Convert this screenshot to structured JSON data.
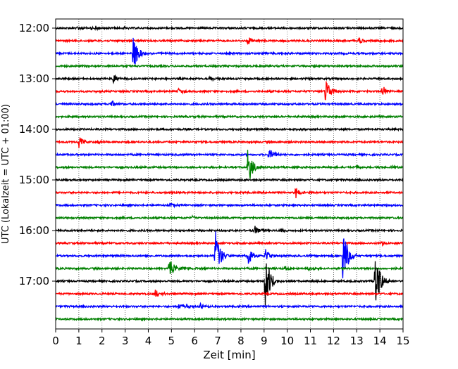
{
  "chart_data": {
    "type": "line",
    "title": "",
    "xlabel": "Zeit  [min]",
    "ylabel": "UTC (Lokalzeit = UTC + 01:00)",
    "xlim": [
      0,
      15
    ],
    "x_ticks": [
      "0",
      "1",
      "2",
      "3",
      "4",
      "5",
      "6",
      "7",
      "8",
      "9",
      "10",
      "11",
      "12",
      "13",
      "14",
      "15"
    ],
    "y_ticks": [
      "12:00",
      "13:00",
      "14:00",
      "15:00",
      "16:00",
      "17:00"
    ],
    "grid": "vertical-dotted",
    "trace_interval_min": 15,
    "start": "12:00",
    "trace_colors": [
      "#000000",
      "#ff0000",
      "#0000ff",
      "#008000"
    ],
    "traces": [
      {
        "start": "12:00",
        "color": "#000000",
        "events": [
          {
            "t": 0.95,
            "amp": 0.3
          },
          {
            "t": 1.5,
            "amp": 0.3
          },
          {
            "t": 1.7,
            "amp": 0.25
          },
          {
            "t": 2.95,
            "amp": 0.25
          }
        ]
      },
      {
        "start": "12:15",
        "color": "#ff0000",
        "events": [
          {
            "t": 8.3,
            "amp": 0.7
          },
          {
            "t": 13.1,
            "amp": 0.6
          }
        ]
      },
      {
        "start": "12:30",
        "color": "#0000ff",
        "events": [
          {
            "t": 3.35,
            "amp": 2.5
          },
          {
            "t": 8.95,
            "amp": 0.3
          }
        ]
      },
      {
        "start": "12:45",
        "color": "#008000",
        "events": []
      },
      {
        "start": "13:00",
        "color": "#000000",
        "events": [
          {
            "t": 2.5,
            "amp": 0.7
          },
          {
            "t": 6.65,
            "amp": 0.3
          }
        ]
      },
      {
        "start": "13:15",
        "color": "#ff0000",
        "events": [
          {
            "t": 5.3,
            "amp": 0.6
          },
          {
            "t": 11.65,
            "amp": 2.1
          },
          {
            "t": 14.1,
            "amp": 0.9
          }
        ]
      },
      {
        "start": "13:30",
        "color": "#0000ff",
        "events": [
          {
            "t": 2.35,
            "amp": 0.6
          }
        ]
      },
      {
        "start": "13:45",
        "color": "#008000",
        "events": []
      },
      {
        "start": "14:00",
        "color": "#000000",
        "events": [
          {
            "t": 10.0,
            "amp": 0.2
          }
        ]
      },
      {
        "start": "14:15",
        "color": "#ff0000",
        "events": [
          {
            "t": 1.0,
            "amp": 1.0
          },
          {
            "t": 1.75,
            "amp": 0.3
          }
        ]
      },
      {
        "start": "14:30",
        "color": "#0000ff",
        "events": [
          {
            "t": 9.2,
            "amp": 1.3
          }
        ]
      },
      {
        "start": "14:45",
        "color": "#008000",
        "events": [
          {
            "t": 8.3,
            "amp": 3.0
          },
          {
            "t": 13.0,
            "amp": 0.4
          },
          {
            "t": 14.5,
            "amp": 0.25
          }
        ]
      },
      {
        "start": "15:00",
        "color": "#000000",
        "events": []
      },
      {
        "start": "15:15",
        "color": "#ff0000",
        "events": [
          {
            "t": 10.35,
            "amp": 0.8
          }
        ]
      },
      {
        "start": "15:30",
        "color": "#0000ff",
        "events": [
          {
            "t": 4.95,
            "amp": 0.4
          }
        ]
      },
      {
        "start": "15:45",
        "color": "#008000",
        "events": [
          {
            "t": 5.9,
            "amp": 0.25
          }
        ]
      },
      {
        "start": "16:00",
        "color": "#000000",
        "events": [
          {
            "t": 8.6,
            "amp": 0.7
          },
          {
            "t": 9.7,
            "amp": 0.3
          }
        ]
      },
      {
        "start": "16:15",
        "color": "#ff0000",
        "events": [
          {
            "t": 14.05,
            "amp": 0.5
          }
        ]
      },
      {
        "start": "16:30",
        "color": "#0000ff",
        "events": [
          {
            "t": 6.9,
            "amp": 4.0
          },
          {
            "t": 8.3,
            "amp": 1.7
          },
          {
            "t": 9.05,
            "amp": 1.0
          },
          {
            "t": 12.4,
            "amp": 4.5
          }
        ]
      },
      {
        "start": "16:45",
        "color": "#008000",
        "events": [
          {
            "t": 4.9,
            "amp": 1.9
          },
          {
            "t": 5.45,
            "amp": 0.3
          },
          {
            "t": 9.9,
            "amp": 0.3
          },
          {
            "t": 10.9,
            "amp": 0.4
          }
        ]
      },
      {
        "start": "17:00",
        "color": "#000000",
        "events": [
          {
            "t": 9.05,
            "amp": 5.0
          },
          {
            "t": 13.8,
            "amp": 5.0
          }
        ]
      },
      {
        "start": "17:15",
        "color": "#ff0000",
        "events": [
          {
            "t": 4.3,
            "amp": 0.7
          }
        ]
      },
      {
        "start": "17:30",
        "color": "#0000ff",
        "events": [
          {
            "t": 5.3,
            "amp": 0.5
          },
          {
            "t": 5.6,
            "amp": 0.5
          },
          {
            "t": 6.25,
            "amp": 0.4
          }
        ]
      },
      {
        "start": "17:45",
        "color": "#008000",
        "events": []
      }
    ]
  }
}
